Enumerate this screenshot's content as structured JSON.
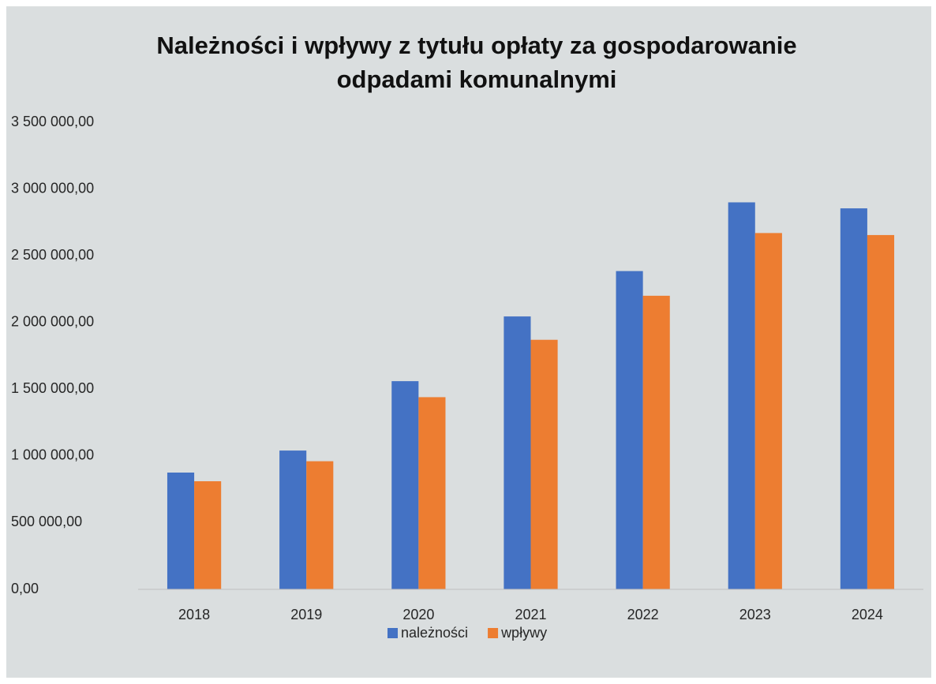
{
  "chart_data": {
    "type": "bar",
    "title": [
      "Należności i wpływy z tytułu opłaty za gospodarowanie",
      "odpadami komunalnymi"
    ],
    "categories": [
      "2018",
      "2019",
      "2020",
      "2021",
      "2022",
      "2023",
      "2024"
    ],
    "series": [
      {
        "name": "należności",
        "color": "#4472c4",
        "values": [
          875000,
          1040000,
          1560000,
          2045000,
          2385000,
          2900000,
          2855000
        ]
      },
      {
        "name": "wpływy",
        "color": "#ed7d31",
        "values": [
          810000,
          960000,
          1440000,
          1870000,
          2200000,
          2670000,
          2655000
        ]
      }
    ],
    "ylim": [
      0,
      3500000
    ],
    "yticks": [
      {
        "value": 0,
        "label": "0,00"
      },
      {
        "value": 500000,
        "label": "500 000,00"
      },
      {
        "value": 1000000,
        "label": "1 000 000,00"
      },
      {
        "value": 1500000,
        "label": "1 500 000,00"
      },
      {
        "value": 2000000,
        "label": "2 000 000,00"
      },
      {
        "value": 2500000,
        "label": "2 500 000,00"
      },
      {
        "value": 3000000,
        "label": "3 000 000,00"
      },
      {
        "value": 3500000,
        "label": "3 500 000,00"
      }
    ],
    "grid": false,
    "legend": "bottom"
  }
}
